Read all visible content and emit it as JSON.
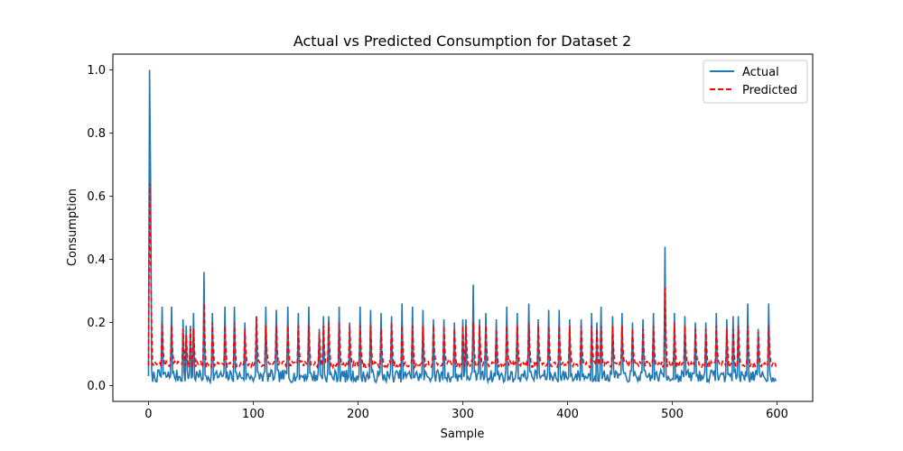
{
  "chart_data": {
    "type": "line",
    "title": "Actual vs Predicted Consumption for Dataset 2",
    "xlabel": "Sample",
    "ylabel": "Consumption",
    "xlim": [
      -34,
      634
    ],
    "ylim": [
      -0.05,
      1.05
    ],
    "xticks": [
      0,
      100,
      200,
      300,
      400,
      500,
      600
    ],
    "yticks": [
      0.0,
      0.2,
      0.4,
      0.6,
      0.8,
      1.0
    ],
    "xtick_labels": [
      "0",
      "100",
      "200",
      "300",
      "400",
      "500",
      "600"
    ],
    "ytick_labels": [
      "0.0",
      "0.2",
      "0.4",
      "0.6",
      "0.8",
      "1.0"
    ],
    "legend": {
      "position": "top-right",
      "entries": [
        "Actual",
        "Predicted"
      ]
    },
    "n_samples": 600,
    "series": [
      {
        "name": "Actual",
        "color": "#1f77b4",
        "style": "solid",
        "baseline": 0.03,
        "noise": 0.02,
        "spikes": [
          [
            1,
            1.0
          ],
          [
            2,
            0.65
          ],
          [
            13,
            0.25
          ],
          [
            22,
            0.25
          ],
          [
            33,
            0.21
          ],
          [
            36,
            0.19
          ],
          [
            40,
            0.19
          ],
          [
            43,
            0.23
          ],
          [
            53,
            0.36
          ],
          [
            61,
            0.23
          ],
          [
            73,
            0.25
          ],
          [
            82,
            0.25
          ],
          [
            92,
            0.2
          ],
          [
            103,
            0.22
          ],
          [
            112,
            0.25
          ],
          [
            122,
            0.24
          ],
          [
            133,
            0.25
          ],
          [
            143,
            0.23
          ],
          [
            153,
            0.25
          ],
          [
            163,
            0.18
          ],
          [
            167,
            0.22
          ],
          [
            172,
            0.22
          ],
          [
            182,
            0.25
          ],
          [
            192,
            0.2
          ],
          [
            202,
            0.25
          ],
          [
            212,
            0.24
          ],
          [
            222,
            0.23
          ],
          [
            232,
            0.22
          ],
          [
            242,
            0.26
          ],
          [
            252,
            0.25
          ],
          [
            262,
            0.24
          ],
          [
            272,
            0.21
          ],
          [
            282,
            0.21
          ],
          [
            292,
            0.2
          ],
          [
            300,
            0.21
          ],
          [
            303,
            0.21
          ],
          [
            310,
            0.32
          ],
          [
            316,
            0.21
          ],
          [
            322,
            0.23
          ],
          [
            332,
            0.21
          ],
          [
            342,
            0.25
          ],
          [
            352,
            0.23
          ],
          [
            363,
            0.26
          ],
          [
            372,
            0.21
          ],
          [
            382,
            0.24
          ],
          [
            392,
            0.24
          ],
          [
            402,
            0.21
          ],
          [
            413,
            0.21
          ],
          [
            423,
            0.23
          ],
          [
            428,
            0.2
          ],
          [
            432,
            0.25
          ],
          [
            443,
            0.22
          ],
          [
            452,
            0.23
          ],
          [
            462,
            0.2
          ],
          [
            472,
            0.21
          ],
          [
            482,
            0.23
          ],
          [
            493,
            0.44
          ],
          [
            502,
            0.23
          ],
          [
            512,
            0.22
          ],
          [
            522,
            0.2
          ],
          [
            532,
            0.2
          ],
          [
            542,
            0.23
          ],
          [
            552,
            0.21
          ],
          [
            558,
            0.22
          ],
          [
            563,
            0.22
          ],
          [
            572,
            0.26
          ],
          [
            582,
            0.18
          ],
          [
            592,
            0.26
          ]
        ]
      },
      {
        "name": "Predicted",
        "color": "#ff0000",
        "style": "dashed",
        "baseline": 0.068,
        "noise": 0.01,
        "spikes": [
          [
            1,
            0.64
          ],
          [
            2,
            0.42
          ],
          [
            13,
            0.2
          ],
          [
            22,
            0.19
          ],
          [
            33,
            0.18
          ],
          [
            36,
            0.16
          ],
          [
            40,
            0.18
          ],
          [
            43,
            0.18
          ],
          [
            53,
            0.26
          ],
          [
            61,
            0.2
          ],
          [
            73,
            0.19
          ],
          [
            82,
            0.2
          ],
          [
            92,
            0.18
          ],
          [
            103,
            0.22
          ],
          [
            112,
            0.19
          ],
          [
            122,
            0.19
          ],
          [
            133,
            0.19
          ],
          [
            143,
            0.19
          ],
          [
            153,
            0.19
          ],
          [
            163,
            0.17
          ],
          [
            167,
            0.19
          ],
          [
            172,
            0.2
          ],
          [
            182,
            0.2
          ],
          [
            192,
            0.19
          ],
          [
            202,
            0.19
          ],
          [
            212,
            0.19
          ],
          [
            222,
            0.18
          ],
          [
            232,
            0.2
          ],
          [
            242,
            0.19
          ],
          [
            252,
            0.19
          ],
          [
            262,
            0.19
          ],
          [
            272,
            0.19
          ],
          [
            282,
            0.19
          ],
          [
            292,
            0.18
          ],
          [
            300,
            0.19
          ],
          [
            303,
            0.19
          ],
          [
            310,
            0.2
          ],
          [
            316,
            0.19
          ],
          [
            322,
            0.19
          ],
          [
            332,
            0.18
          ],
          [
            342,
            0.19
          ],
          [
            352,
            0.19
          ],
          [
            363,
            0.2
          ],
          [
            372,
            0.19
          ],
          [
            382,
            0.19
          ],
          [
            392,
            0.19
          ],
          [
            402,
            0.19
          ],
          [
            413,
            0.19
          ],
          [
            423,
            0.19
          ],
          [
            428,
            0.18
          ],
          [
            432,
            0.19
          ],
          [
            443,
            0.19
          ],
          [
            452,
            0.19
          ],
          [
            462,
            0.18
          ],
          [
            472,
            0.18
          ],
          [
            482,
            0.19
          ],
          [
            493,
            0.31
          ],
          [
            502,
            0.2
          ],
          [
            512,
            0.19
          ],
          [
            522,
            0.18
          ],
          [
            532,
            0.18
          ],
          [
            542,
            0.19
          ],
          [
            552,
            0.18
          ],
          [
            558,
            0.18
          ],
          [
            563,
            0.19
          ],
          [
            572,
            0.19
          ],
          [
            582,
            0.17
          ],
          [
            592,
            0.19
          ]
        ]
      }
    ]
  }
}
